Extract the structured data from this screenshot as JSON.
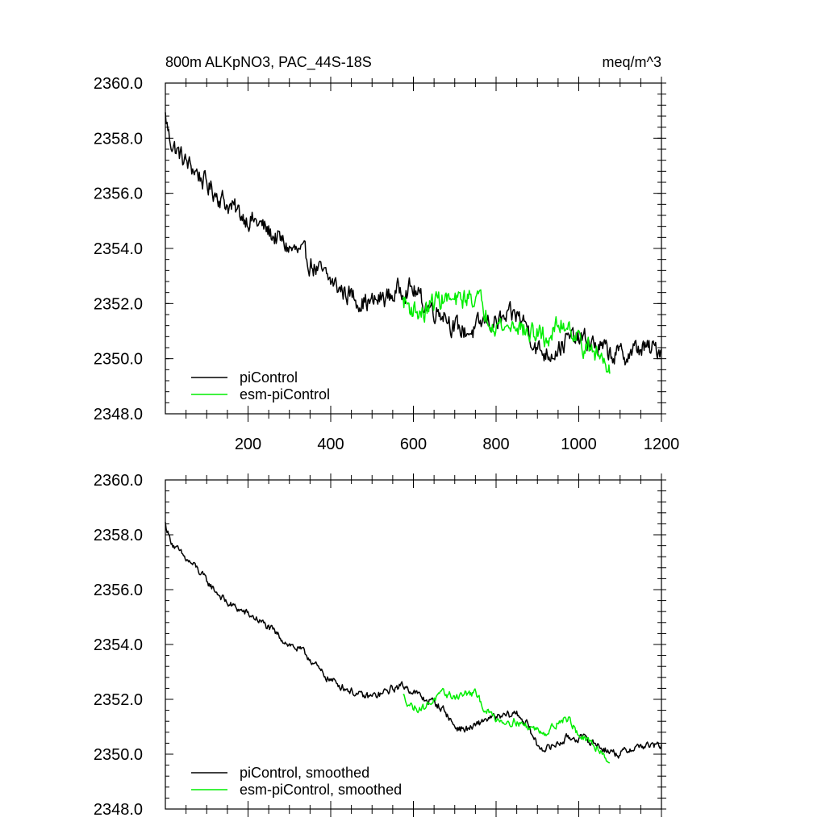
{
  "chart_data": [
    {
      "type": "line",
      "title": "800m ALKpNO3, PAC_44S-18S",
      "units": "meq/m^3",
      "xlabel": "",
      "ylabel": "",
      "xlim": [
        0,
        1200
      ],
      "ylim": [
        2348,
        2360
      ],
      "x_ticks": [
        200,
        400,
        600,
        800,
        1000,
        1200
      ],
      "x_tick_labels": [
        "200",
        "400",
        "600",
        "800",
        "1000",
        "1200"
      ],
      "y_ticks": [
        2348,
        2350,
        2352,
        2354,
        2356,
        2358,
        2360
      ],
      "y_tick_labels": [
        "2348.0",
        "2350.0",
        "2352.0",
        "2354.0",
        "2356.0",
        "2358.0",
        "2360.0"
      ],
      "grid": false,
      "legend_position": "bottom-left",
      "series": [
        {
          "name": "piControl",
          "color": "#000000",
          "noise": 0.4,
          "points": [
            [
              0,
              2358.8
            ],
            [
              10,
              2358.0
            ],
            [
              25,
              2357.6
            ],
            [
              50,
              2357.1
            ],
            [
              75,
              2356.8
            ],
            [
              100,
              2356.3
            ],
            [
              125,
              2356.0
            ],
            [
              150,
              2355.6
            ],
            [
              175,
              2355.3
            ],
            [
              200,
              2355.1
            ],
            [
              225,
              2354.9
            ],
            [
              250,
              2354.6
            ],
            [
              275,
              2354.3
            ],
            [
              300,
              2354.0
            ],
            [
              325,
              2353.8
            ],
            [
              350,
              2353.5
            ],
            [
              375,
              2353.1
            ],
            [
              400,
              2352.8
            ],
            [
              425,
              2352.5
            ],
            [
              450,
              2352.3
            ],
            [
              475,
              2352.1
            ],
            [
              500,
              2352.0
            ],
            [
              525,
              2352.2
            ],
            [
              550,
              2352.3
            ],
            [
              575,
              2352.6
            ],
            [
              600,
              2352.5
            ],
            [
              625,
              2352.0
            ],
            [
              650,
              2351.8
            ],
            [
              675,
              2351.7
            ],
            [
              700,
              2351.1
            ],
            [
              725,
              2351.0
            ],
            [
              750,
              2351.0
            ],
            [
              775,
              2351.4
            ],
            [
              800,
              2351.3
            ],
            [
              825,
              2351.4
            ],
            [
              850,
              2351.6
            ],
            [
              875,
              2351.2
            ],
            [
              900,
              2350.3
            ],
            [
              925,
              2350.2
            ],
            [
              950,
              2350.4
            ],
            [
              975,
              2350.7
            ],
            [
              1000,
              2350.7
            ],
            [
              1025,
              2350.6
            ],
            [
              1050,
              2350.4
            ],
            [
              1075,
              2350.2
            ],
            [
              1100,
              2350.1
            ],
            [
              1125,
              2350.2
            ],
            [
              1150,
              2350.4
            ],
            [
              1175,
              2350.3
            ],
            [
              1200,
              2350.4
            ]
          ]
        },
        {
          "name": "esm-piControl",
          "color": "#00ee00",
          "noise": 0.4,
          "points": [
            [
              575,
              2352.1
            ],
            [
              600,
              2351.8
            ],
            [
              625,
              2351.6
            ],
            [
              650,
              2352.1
            ],
            [
              675,
              2352.2
            ],
            [
              700,
              2352.0
            ],
            [
              725,
              2352.2
            ],
            [
              750,
              2352.3
            ],
            [
              775,
              2351.7
            ],
            [
              800,
              2351.3
            ],
            [
              825,
              2351.1
            ],
            [
              850,
              2351.3
            ],
            [
              875,
              2350.9
            ],
            [
              900,
              2350.9
            ],
            [
              925,
              2350.7
            ],
            [
              950,
              2351.2
            ],
            [
              975,
              2351.3
            ],
            [
              1000,
              2350.7
            ],
            [
              1025,
              2350.3
            ],
            [
              1050,
              2350.1
            ],
            [
              1075,
              2349.8
            ]
          ]
        }
      ]
    },
    {
      "type": "line",
      "title": "",
      "units": "",
      "xlabel": "",
      "ylabel": "",
      "xlim": [
        0,
        1200
      ],
      "ylim": [
        2348,
        2360
      ],
      "y_ticks": [
        2348,
        2350,
        2352,
        2354,
        2356,
        2358,
        2360
      ],
      "y_tick_labels": [
        "2348.0",
        "2350.0",
        "2352.0",
        "2354.0",
        "2356.0",
        "2358.0",
        "2360.0"
      ],
      "grid": false,
      "legend_position": "bottom-left",
      "series": [
        {
          "name": "piControl, smoothed",
          "color": "#000000",
          "noise": 0.15,
          "points": [
            [
              0,
              2358.4
            ],
            [
              10,
              2357.9
            ],
            [
              25,
              2357.5
            ],
            [
              50,
              2357.1
            ],
            [
              75,
              2356.8
            ],
            [
              100,
              2356.3
            ],
            [
              125,
              2355.9
            ],
            [
              150,
              2355.5
            ],
            [
              175,
              2355.3
            ],
            [
              200,
              2355.1
            ],
            [
              225,
              2354.9
            ],
            [
              250,
              2354.6
            ],
            [
              275,
              2354.3
            ],
            [
              300,
              2354.0
            ],
            [
              325,
              2353.8
            ],
            [
              350,
              2353.5
            ],
            [
              375,
              2353.0
            ],
            [
              400,
              2352.7
            ],
            [
              425,
              2352.5
            ],
            [
              450,
              2352.3
            ],
            [
              475,
              2352.1
            ],
            [
              500,
              2352.1
            ],
            [
              525,
              2352.2
            ],
            [
              550,
              2352.4
            ],
            [
              575,
              2352.5
            ],
            [
              600,
              2352.3
            ],
            [
              625,
              2352.0
            ],
            [
              650,
              2351.9
            ],
            [
              675,
              2351.6
            ],
            [
              700,
              2351.0
            ],
            [
              725,
              2350.9
            ],
            [
              750,
              2351.0
            ],
            [
              775,
              2351.3
            ],
            [
              800,
              2351.3
            ],
            [
              825,
              2351.4
            ],
            [
              850,
              2351.5
            ],
            [
              875,
              2351.1
            ],
            [
              900,
              2350.3
            ],
            [
              925,
              2350.2
            ],
            [
              950,
              2350.4
            ],
            [
              975,
              2350.6
            ],
            [
              1000,
              2350.6
            ],
            [
              1025,
              2350.5
            ],
            [
              1050,
              2350.3
            ],
            [
              1075,
              2350.1
            ],
            [
              1100,
              2350.0
            ],
            [
              1125,
              2350.2
            ],
            [
              1150,
              2350.3
            ],
            [
              1175,
              2350.3
            ],
            [
              1200,
              2350.3
            ]
          ]
        },
        {
          "name": "esm-piControl, smoothed",
          "color": "#00ee00",
          "noise": 0.15,
          "points": [
            [
              575,
              2352.1
            ],
            [
              600,
              2351.7
            ],
            [
              625,
              2351.7
            ],
            [
              650,
              2352.0
            ],
            [
              675,
              2352.2
            ],
            [
              700,
              2352.1
            ],
            [
              725,
              2352.2
            ],
            [
              750,
              2352.2
            ],
            [
              775,
              2351.6
            ],
            [
              800,
              2351.3
            ],
            [
              825,
              2351.2
            ],
            [
              850,
              2351.2
            ],
            [
              875,
              2351.0
            ],
            [
              900,
              2350.9
            ],
            [
              925,
              2350.8
            ],
            [
              950,
              2351.2
            ],
            [
              975,
              2351.3
            ],
            [
              1000,
              2350.7
            ],
            [
              1025,
              2350.4
            ],
            [
              1050,
              2350.2
            ],
            [
              1075,
              2349.7
            ]
          ]
        }
      ]
    }
  ]
}
